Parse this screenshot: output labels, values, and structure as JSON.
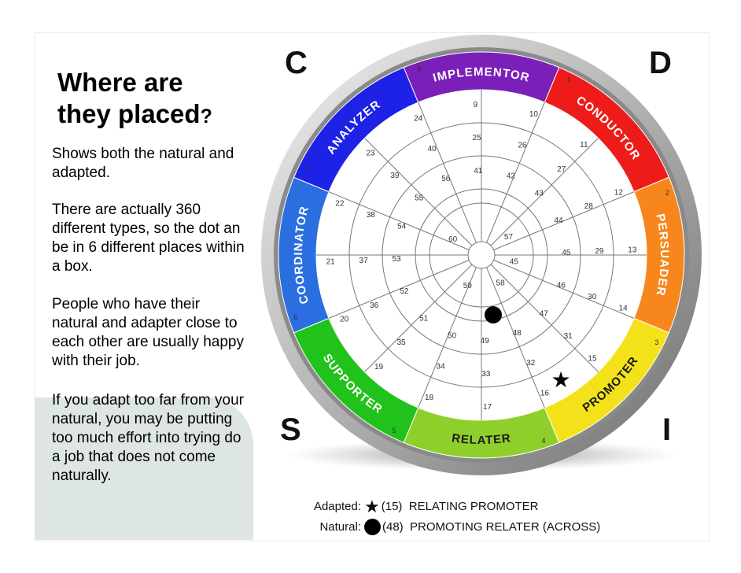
{
  "title": {
    "line1": "Where are",
    "line2": "they placed",
    "mark": "?"
  },
  "paragraphs": [
    "Shows both the natural and adapted.",
    "There are actually 360 different types, so the dot an be in 6 different places within a box.",
    "People who have their natural and adapter close to each other are usually happy with their job.",
    "If you adapt too far from your natural, you may be putting too much effort into trying do a job that does not come naturally."
  ],
  "corners": {
    "c": "C",
    "d": "D",
    "s": "S",
    "i": "I"
  },
  "segments": [
    {
      "name": "CONDUCTOR",
      "number": "1",
      "color": "#ee1b1b"
    },
    {
      "name": "PERSUADER",
      "number": "2",
      "color": "#f7871c"
    },
    {
      "name": "PROMOTER",
      "number": "3",
      "color": "#f3e21a"
    },
    {
      "name": "RELATER",
      "number": "4",
      "color": "#8fcf2c"
    },
    {
      "name": "SUPPORTER",
      "number": "5",
      "color": "#22c21c"
    },
    {
      "name": "COORDINATOR",
      "number": "6",
      "color": "#2a6ee0"
    },
    {
      "name": "ANALYZER",
      "number": "7",
      "color": "#1d22e6"
    },
    {
      "name": "IMPLEMENTOR",
      "number": "8",
      "color": "#7a1fb8"
    }
  ],
  "ring_numbers": [
    [
      "10",
      "11",
      "12",
      "13",
      "14",
      "15",
      "16",
      "17",
      "18",
      "19",
      "20",
      "21",
      "22",
      "23",
      "24",
      "9"
    ],
    [
      "26",
      "27",
      "28",
      "29",
      "30",
      "31",
      "32",
      "33",
      "34",
      "35",
      "36",
      "37",
      "38",
      "39",
      "40",
      "25"
    ],
    [
      "42",
      "43",
      "44",
      "45",
      "46",
      "47",
      "48",
      "49",
      "50",
      "51",
      "52",
      "53",
      "54",
      "55",
      "56",
      "41"
    ],
    [
      "57",
      "45",
      "58",
      "59",
      "60"
    ]
  ],
  "legend": {
    "adapted_label": "Adapted:",
    "adapted_text": "(15)  RELATING PROMOTER",
    "natural_label": "Natural:",
    "natural_text": "(48)  PROMOTING RELATER (ACROSS)"
  }
}
